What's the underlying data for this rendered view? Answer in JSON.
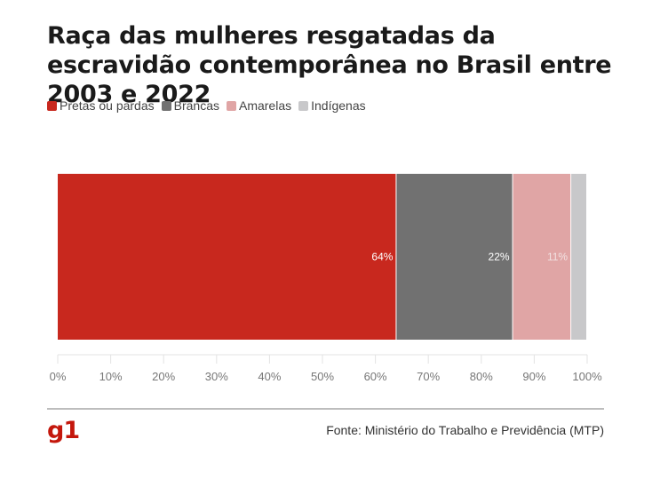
{
  "title": "Raça das mulheres resgatadas da escravidão contemporânea no Brasil entre 2003 e 2022",
  "legend": [
    {
      "label": "Pretas ou pardas",
      "color": "#c8281e"
    },
    {
      "label": "Brancas",
      "color": "#717171"
    },
    {
      "label": "Amarelas",
      "color": "#e0a5a5"
    },
    {
      "label": "Indígenas",
      "color": "#c8c8ca"
    }
  ],
  "chart_data": {
    "type": "bar",
    "orientation": "horizontal-stacked",
    "series": [
      {
        "name": "Pretas ou pardas",
        "value": 64,
        "label": "64%",
        "color": "#c8281e",
        "label_color": "#ffffff"
      },
      {
        "name": "Brancas",
        "value": 22,
        "label": "22%",
        "color": "#717171",
        "label_color": "#ffffff"
      },
      {
        "name": "Amarelas",
        "value": 11,
        "label": "11%",
        "color": "#e0a5a5",
        "label_color": "#f2e2e2"
      },
      {
        "name": "Indígenas",
        "value": 3,
        "label": "",
        "color": "#c8c8ca",
        "label_color": "#ffffff"
      }
    ],
    "xlim": [
      0,
      100
    ],
    "xticks": [
      "0%",
      "10%",
      "20%",
      "30%",
      "40%",
      "50%",
      "60%",
      "70%",
      "80%",
      "90%",
      "100%"
    ],
    "grid": true,
    "legend_position": "top-left"
  },
  "logo": "g1",
  "source": "Fonte: Ministério do Trabalho e Previdência (MTP)"
}
